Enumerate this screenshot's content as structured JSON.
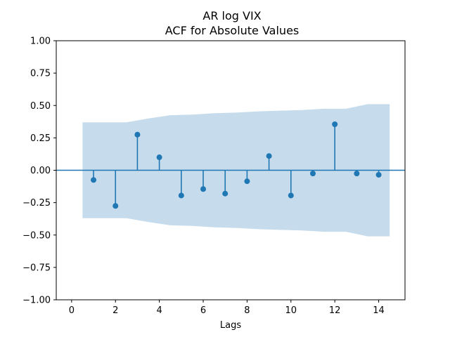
{
  "chart_data": {
    "type": "stem",
    "title": "AR log VIX",
    "subtitle": "ACF for Absolute Values",
    "xlabel": "Lags",
    "ylabel": "",
    "xlim": [
      -0.7,
      15.2
    ],
    "ylim": [
      -1.0,
      1.0
    ],
    "xticks": [
      0,
      2,
      4,
      6,
      8,
      10,
      12,
      14
    ],
    "xtick_labels": [
      "0",
      "2",
      "4",
      "6",
      "8",
      "10",
      "12",
      "14"
    ],
    "yticks": [
      1.0,
      0.75,
      0.5,
      0.25,
      0.0,
      -0.25,
      -0.5,
      -0.75,
      -1.0
    ],
    "ytick_labels": [
      "1.00",
      "0.75",
      "0.50",
      "0.25",
      "0.00",
      "−0.25",
      "−0.50",
      "−0.75",
      "−1.00"
    ],
    "grid": false,
    "series": [
      {
        "x": [
          1,
          2,
          3,
          4,
          5,
          6,
          7,
          8,
          9,
          10,
          11,
          12,
          13,
          14
        ],
        "y": [
          -0.075,
          -0.275,
          0.275,
          0.1,
          -0.195,
          -0.145,
          -0.18,
          -0.085,
          0.11,
          -0.195,
          -0.025,
          0.355,
          -0.025,
          -0.035
        ]
      }
    ],
    "confidence_band": {
      "x": [
        0.5,
        1.5,
        2.5,
        3.5,
        4.5,
        5.5,
        6.5,
        7.5,
        8.5,
        9.5,
        10.5,
        11.5,
        12.5,
        13.5,
        14.5
      ],
      "upper": [
        0.37,
        0.37,
        0.37,
        0.4,
        0.425,
        0.43,
        0.44,
        0.445,
        0.455,
        0.46,
        0.465,
        0.475,
        0.475,
        0.51,
        0.51
      ],
      "lower": [
        -0.37,
        -0.37,
        -0.37,
        -0.4,
        -0.425,
        -0.43,
        -0.44,
        -0.445,
        -0.455,
        -0.46,
        -0.465,
        -0.475,
        -0.475,
        -0.51,
        -0.51
      ]
    },
    "colors": {
      "stem": "#1f77b4",
      "band": "#c6dcec",
      "zero_line": "#1f77b4",
      "axes": "#000000"
    }
  }
}
